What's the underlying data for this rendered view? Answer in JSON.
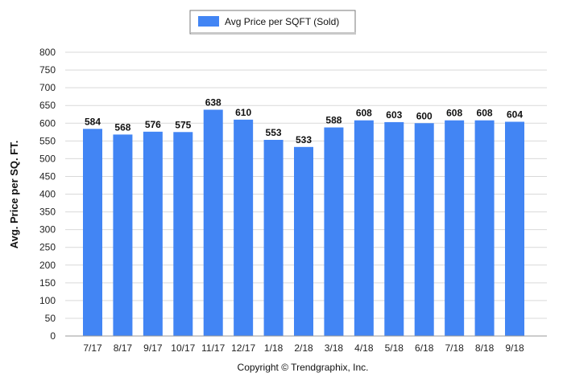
{
  "chart_data": {
    "type": "bar",
    "categories": [
      "7/17",
      "8/17",
      "9/17",
      "10/17",
      "11/17",
      "12/17",
      "1/18",
      "2/18",
      "3/18",
      "4/18",
      "5/18",
      "6/18",
      "7/18",
      "8/18",
      "9/18"
    ],
    "series": [
      {
        "name": "Avg Price per SQFT (Sold)",
        "values": [
          584,
          568,
          576,
          575,
          638,
          610,
          553,
          533,
          588,
          608,
          603,
          600,
          608,
          608,
          604
        ],
        "color": "#4285f4"
      }
    ],
    "ylabel": "Avg. Price per SQ. FT.",
    "xlabel": "",
    "ylim": [
      0,
      800
    ],
    "ytick_step": 50,
    "grid": true,
    "legend_position": "top-center"
  },
  "footer": {
    "copyright": "Copyright © Trendgraphix, Inc."
  }
}
